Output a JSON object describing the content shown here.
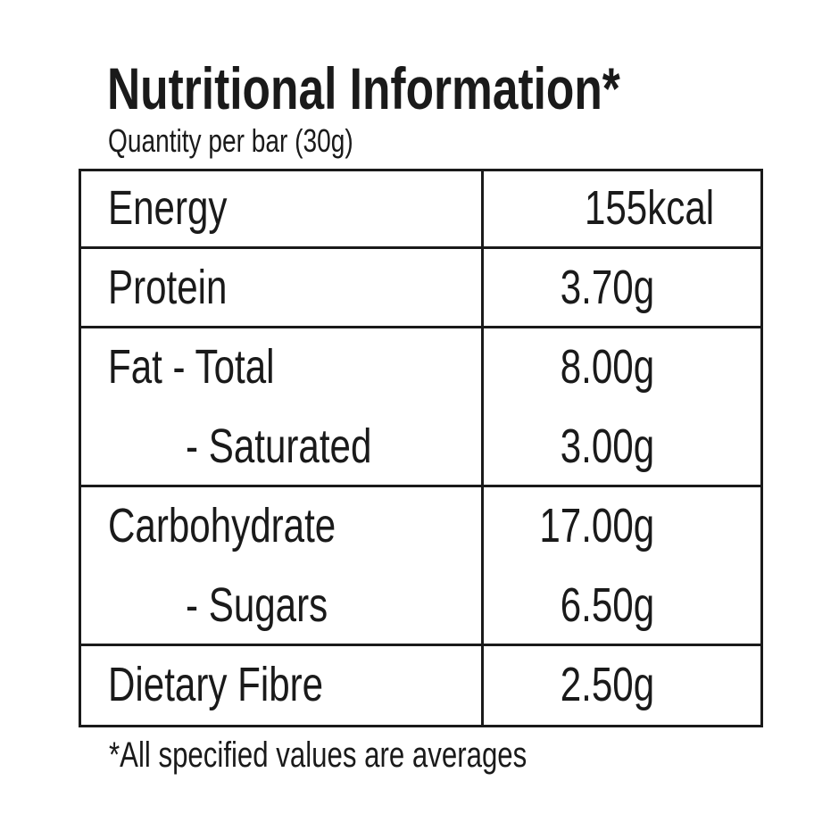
{
  "header": {
    "title": "Nutritional Information*",
    "subtitle": "Quantity per bar (30g)"
  },
  "table": {
    "groups": [
      [
        [
          "Energy",
          "155kcal"
        ]
      ],
      [
        [
          "Protein",
          "3.70g"
        ]
      ],
      [
        [
          "Fat - Total",
          "8.00g"
        ],
        [
          "- Saturated",
          "3.00g"
        ]
      ],
      [
        [
          "Carbohydrate",
          "17.00g"
        ],
        [
          "- Sugars",
          "6.50g"
        ]
      ],
      [
        [
          "Dietary Fibre",
          "2.50g"
        ]
      ]
    ]
  },
  "footnote": "*All specified values are averages"
}
